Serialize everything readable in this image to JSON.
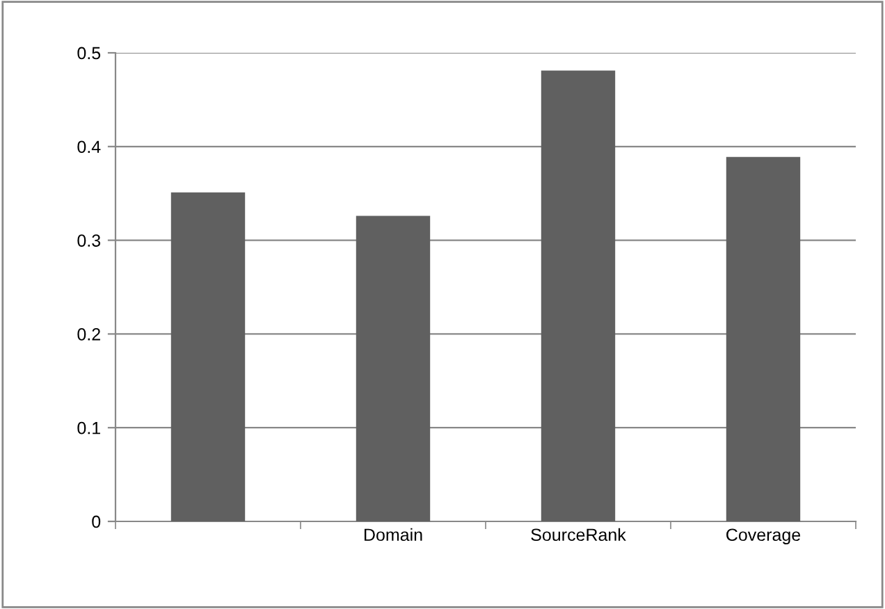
{
  "chart_data": {
    "type": "bar",
    "categories": [
      null,
      "Domain",
      "SourceRank",
      "Coverage"
    ],
    "values": [
      0.351,
      0.326,
      0.481,
      0.389
    ],
    "color": "#606060",
    "ylim": [
      0,
      0.5
    ],
    "yticks": [
      0,
      0.1,
      0.2,
      0.3,
      0.4,
      0.5
    ],
    "grid": "y",
    "legend": false
  }
}
